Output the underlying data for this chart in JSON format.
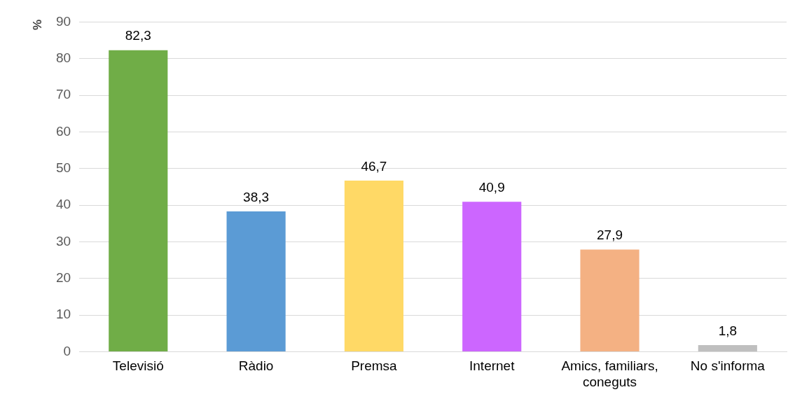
{
  "chart_data": {
    "type": "bar",
    "ylabel": "%",
    "categories": [
      "Televisió",
      "Ràdio",
      "Premsa",
      "Internet",
      "Amics, familiars, coneguts",
      "No s'informa"
    ],
    "values": [
      82.3,
      38.3,
      46.7,
      40.9,
      27.9,
      1.8
    ],
    "colors": [
      "#70ad47",
      "#5b9bd5",
      "#ffd966",
      "#cc66ff",
      "#f4b183",
      "#bfbfbf"
    ],
    "value_labels": [
      "82,3",
      "38,3",
      "46,7",
      "40,9",
      "27,9",
      "1,8"
    ],
    "ylim": [
      0,
      90
    ],
    "yticks": [
      0,
      10,
      20,
      30,
      40,
      50,
      60,
      70,
      80,
      90
    ],
    "grid": "y",
    "legend": false
  }
}
